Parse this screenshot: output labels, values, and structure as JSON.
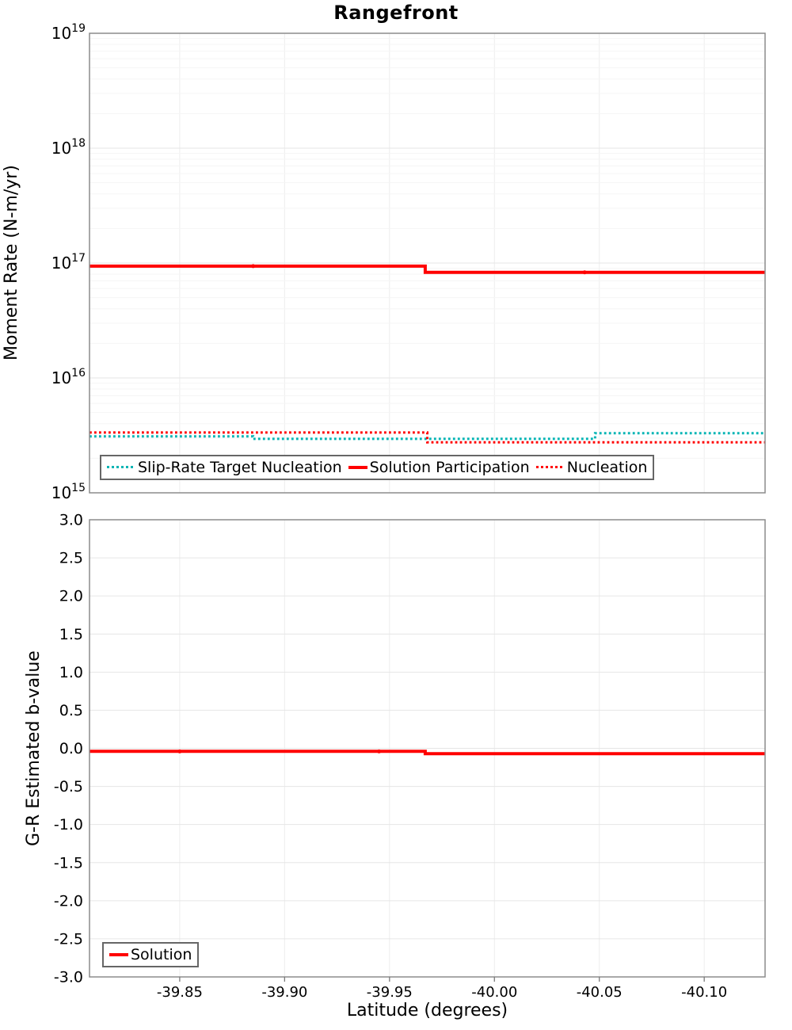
{
  "title": "Rangefront",
  "colors": {
    "solution_red": "#ff0000",
    "target_teal": "#00b4b4",
    "nucleation_red": "#ff0000",
    "grid_vertical": "#ededed",
    "grid_minor": "#f5f5f5",
    "grid_major": "#e6e6e6",
    "plot_border": "#8c8c8c",
    "legend_border": "#666666",
    "tick": "#7a7a7a",
    "text": "#000000",
    "background": "#ffffff"
  },
  "chart_data": [
    {
      "type": "line",
      "title": "Rangefront",
      "ylabel": "Moment Rate (N-m/yr)",
      "yscale": "log",
      "ylim": [
        1000000000000000.0,
        1e+19
      ],
      "ytick_exponents": [
        19,
        18,
        17,
        16,
        15
      ],
      "xlim": [
        -39.807,
        -40.129
      ],
      "x_axis_reversed": true,
      "grid": true,
      "show_x_tick_labels": false,
      "xticks": [
        {
          "value": -39.85,
          "label": "-39.85"
        },
        {
          "value": -39.9,
          "label": "-39.90"
        },
        {
          "value": -39.95,
          "label": "-39.95"
        },
        {
          "value": -40.0,
          "label": "-40.00"
        },
        {
          "value": -40.05,
          "label": "-40.05"
        },
        {
          "value": -40.1,
          "label": "-40.10"
        }
      ],
      "legend_position": "inside-bottom-left",
      "series": [
        {
          "name": "Slip-Rate Target Nucleation",
          "color_key": "target_teal",
          "style": "dotted",
          "points": [
            [
              -39.807,
              3100000000000000.0
            ],
            [
              -39.885,
              3100000000000000.0
            ],
            [
              -39.885,
              2950000000000000.0
            ],
            [
              -40.048,
              2950000000000000.0
            ],
            [
              -40.048,
              3300000000000000.0
            ],
            [
              -40.129,
              3300000000000000.0
            ]
          ]
        },
        {
          "name": "Solution Participation",
          "color_key": "solution_red",
          "style": "solid",
          "points": [
            [
              -39.807,
              9.4e+16
            ],
            [
              -39.967,
              9.4e+16
            ],
            [
              -39.967,
              8.3e+16
            ],
            [
              -40.129,
              8.3e+16
            ]
          ],
          "markers": [
            [
              -39.885,
              9.4e+16
            ],
            [
              -40.043,
              8.3e+16
            ]
          ]
        },
        {
          "name": "Nucleation",
          "color_key": "nucleation_red",
          "style": "dotted",
          "points": [
            [
              -39.807,
              3350000000000000.0
            ],
            [
              -39.968,
              3350000000000000.0
            ],
            [
              -39.968,
              2750000000000000.0
            ],
            [
              -40.129,
              2750000000000000.0
            ]
          ]
        }
      ]
    },
    {
      "type": "line",
      "ylabel": "G-R Estimated b-value",
      "xlabel": "Latitude (degrees)",
      "yscale": "linear",
      "ylim": [
        -3,
        3
      ],
      "yticks": [
        {
          "value": 3.0,
          "label": "3.0"
        },
        {
          "value": 2.5,
          "label": "2.5"
        },
        {
          "value": 2.0,
          "label": "2.0"
        },
        {
          "value": 1.5,
          "label": "1.5"
        },
        {
          "value": 1.0,
          "label": "1.0"
        },
        {
          "value": 0.5,
          "label": "0.5"
        },
        {
          "value": 0.0,
          "label": "0.0"
        },
        {
          "value": -0.5,
          "label": "-0.5"
        },
        {
          "value": -1.0,
          "label": "-1.0"
        },
        {
          "value": -1.5,
          "label": "-1.5"
        },
        {
          "value": -2.0,
          "label": "-2.0"
        },
        {
          "value": -2.5,
          "label": "-2.5"
        },
        {
          "value": -3.0,
          "label": "-3.0"
        }
      ],
      "xlim": [
        -39.807,
        -40.129
      ],
      "x_axis_reversed": true,
      "grid": true,
      "show_x_tick_labels": true,
      "xticks": [
        {
          "value": -39.85,
          "label": "-39.85"
        },
        {
          "value": -39.9,
          "label": "-39.90"
        },
        {
          "value": -39.95,
          "label": "-39.95"
        },
        {
          "value": -40.0,
          "label": "-40.00"
        },
        {
          "value": -40.05,
          "label": "-40.05"
        },
        {
          "value": -40.1,
          "label": "-40.10"
        }
      ],
      "legend_position": "inside-bottom-left",
      "series": [
        {
          "name": "Solution",
          "color_key": "solution_red",
          "style": "solid",
          "points": [
            [
              -39.807,
              -0.04
            ],
            [
              -39.967,
              -0.04
            ],
            [
              -39.967,
              -0.07
            ],
            [
              -40.129,
              -0.07
            ]
          ],
          "markers": [
            [
              -39.85,
              -0.04
            ],
            [
              -39.945,
              -0.04
            ]
          ]
        }
      ]
    }
  ]
}
